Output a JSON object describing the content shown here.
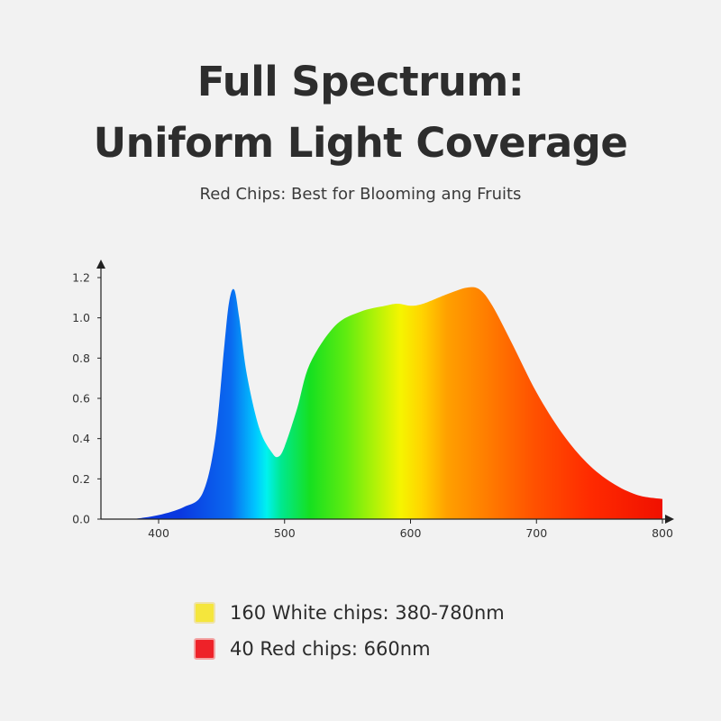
{
  "title": {
    "line1": "Full Spectrum:",
    "line2": "Uniform Light Coverage"
  },
  "subtitle": "Red Chips: Best for Blooming ang Fruits",
  "legend": [
    {
      "label": "160 White chips: 380-780nm",
      "color": "#f5e63c",
      "border": "#efe3a8"
    },
    {
      "label": "40 Red chips: 660nm",
      "color": "#ee2229",
      "border": "#f2a3a3"
    }
  ],
  "chart_data": {
    "type": "area",
    "xlim": [
      360,
      800
    ],
    "ylim": [
      0,
      1.2
    ],
    "xticks": [
      400,
      500,
      600,
      700,
      800
    ],
    "yticks": [
      0.0,
      0.2,
      0.4,
      0.6,
      0.8,
      1.0,
      1.2
    ],
    "xtick_labels": [
      "400",
      "500",
      "600",
      "700",
      "800"
    ],
    "ytick_labels": [
      "0.0",
      "0.2",
      "0.4",
      "0.6",
      "0.8",
      "1.0",
      "1.2"
    ],
    "grid": false,
    "x": [
      380,
      400,
      420,
      435,
      445,
      452,
      456,
      460,
      464,
      470,
      480,
      490,
      495,
      500,
      510,
      520,
      540,
      560,
      580,
      590,
      600,
      610,
      630,
      645,
      655,
      665,
      680,
      700,
      720,
      740,
      760,
      780,
      800
    ],
    "y": [
      0.0,
      0.02,
      0.06,
      0.13,
      0.4,
      0.85,
      1.08,
      1.14,
      1.0,
      0.72,
      0.45,
      0.33,
      0.31,
      0.36,
      0.55,
      0.77,
      0.96,
      1.03,
      1.06,
      1.07,
      1.06,
      1.07,
      1.12,
      1.15,
      1.14,
      1.06,
      0.88,
      0.63,
      0.43,
      0.28,
      0.18,
      0.12,
      0.1
    ]
  }
}
